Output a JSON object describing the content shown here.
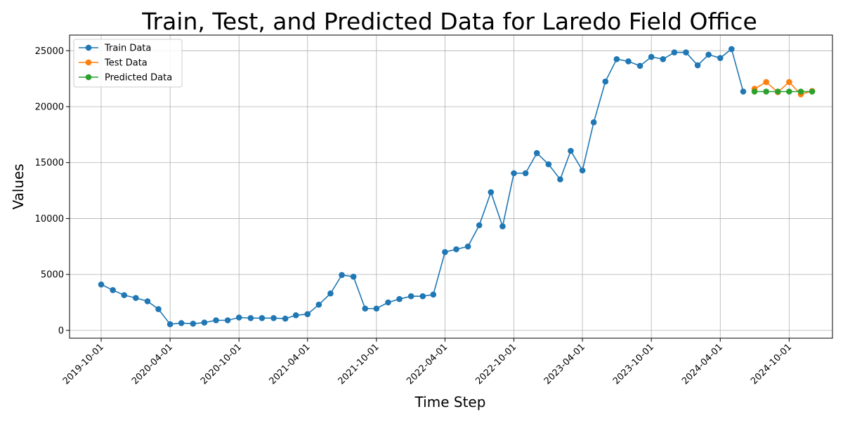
{
  "chart_data": {
    "type": "line",
    "title": "Train, Test, and Predicted Data for Laredo Field Office",
    "xlabel": "Time Step",
    "ylabel": "Values",
    "x_start": "2019-10-01",
    "xlim": [
      "2019-07-09",
      "2025-01-24"
    ],
    "ylim": [
      -700,
      26400
    ],
    "x_ticks": [
      "2019-10-01",
      "2020-04-01",
      "2020-10-01",
      "2021-04-01",
      "2021-10-01",
      "2022-04-01",
      "2022-10-01",
      "2023-04-01",
      "2023-10-01",
      "2024-04-01",
      "2024-10-01"
    ],
    "y_ticks": [
      0,
      5000,
      10000,
      15000,
      20000,
      25000
    ],
    "grid": true,
    "legend_position": "top-left",
    "series": [
      {
        "name": "Train Data",
        "color": "#1f77b4",
        "x": [
          "2019-10-01",
          "2019-11-01",
          "2019-12-01",
          "2020-01-01",
          "2020-02-01",
          "2020-03-01",
          "2020-04-01",
          "2020-05-01",
          "2020-06-01",
          "2020-07-01",
          "2020-08-01",
          "2020-09-01",
          "2020-10-01",
          "2020-11-01",
          "2020-12-01",
          "2021-01-01",
          "2021-02-01",
          "2021-03-01",
          "2021-04-01",
          "2021-05-01",
          "2021-06-01",
          "2021-07-01",
          "2021-08-01",
          "2021-09-01",
          "2021-10-01",
          "2021-11-01",
          "2021-12-01",
          "2022-01-01",
          "2022-02-01",
          "2022-03-01",
          "2022-04-01",
          "2022-05-01",
          "2022-06-01",
          "2022-07-01",
          "2022-08-01",
          "2022-09-01",
          "2022-10-01",
          "2022-11-01",
          "2022-12-01",
          "2023-01-01",
          "2023-02-01",
          "2023-03-01",
          "2023-04-01",
          "2023-05-01",
          "2023-06-01",
          "2023-07-01",
          "2023-08-01",
          "2023-09-01",
          "2023-10-01",
          "2023-11-01",
          "2023-12-01",
          "2024-01-01",
          "2024-02-01",
          "2024-03-01",
          "2024-04-01",
          "2024-05-01",
          "2024-06-01"
        ],
        "values": [
          4100,
          3600,
          3150,
          2900,
          2600,
          1900,
          550,
          650,
          600,
          700,
          900,
          900,
          1150,
          1100,
          1100,
          1100,
          1050,
          1350,
          1450,
          2300,
          3300,
          4950,
          4800,
          1950,
          1950,
          2500,
          2800,
          3050,
          3050,
          3200,
          7000,
          7250,
          7500,
          9400,
          12350,
          9300,
          14050,
          14050,
          15850,
          14850,
          13500,
          16050,
          14300,
          18600,
          22250,
          24250,
          24050,
          23650,
          24450,
          24250,
          24850,
          24850,
          23700,
          24650,
          24350,
          25150,
          21350
        ]
      },
      {
        "name": "Test Data",
        "color": "#ff7f0e",
        "x": [
          "2024-07-01",
          "2024-08-01",
          "2024-09-01",
          "2024-10-01",
          "2024-11-01",
          "2024-12-01"
        ],
        "values": [
          21600,
          22200,
          21300,
          22200,
          21100,
          21400
        ]
      },
      {
        "name": "Predicted Data",
        "color": "#2ca02c",
        "x": [
          "2024-07-01",
          "2024-08-01",
          "2024-09-01",
          "2024-10-01",
          "2024-11-01",
          "2024-12-01"
        ],
        "values": [
          21350,
          21350,
          21350,
          21350,
          21350,
          21350
        ]
      }
    ]
  }
}
